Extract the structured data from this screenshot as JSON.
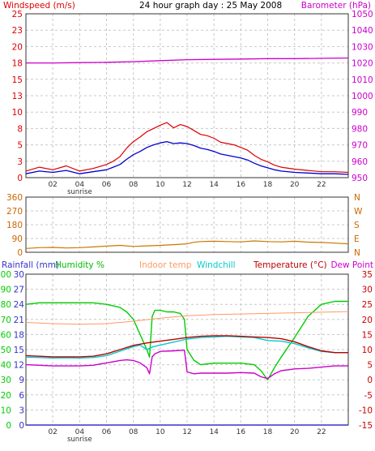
{
  "title": "24 hour graph day : 25 May 2008",
  "colors": {
    "windspeed": "#dd0000",
    "gust_avg": "#0000cc",
    "barometer": "#cc00cc",
    "direction": "#cc7700",
    "dir_axis": "#cc6600",
    "rainfall": "#3333cc",
    "humidity": "#00cc00",
    "indoor": "#ff9966",
    "windchill": "#00cccc",
    "temperature": "#bb0000",
    "dewpoint": "#cc00cc",
    "temp_axis": "#cc0000",
    "grid": "#c8c8c8",
    "frame": "#333333"
  },
  "x_axis": {
    "range_hours": [
      0,
      24
    ],
    "ticks": [
      "02",
      "04",
      "06",
      "08",
      "10",
      "12",
      "14",
      "16",
      "18",
      "20",
      "22"
    ],
    "tick_hours": [
      2,
      4,
      6,
      8,
      10,
      12,
      14,
      16,
      18,
      20,
      22
    ],
    "sunrise_label": "sunrise",
    "sunrise_hour": 4
  },
  "chart_data": [
    {
      "type": "line",
      "id": "wind",
      "left_label": "Windspeed (m/s)",
      "right_label": "Barometer (hPa)",
      "left_ticks": [
        "0",
        "3",
        "5",
        "8",
        "10",
        "13",
        "15",
        "18",
        "20",
        "23",
        "25"
      ],
      "left_range": [
        0,
        25
      ],
      "right_ticks": [
        "950",
        "960",
        "970",
        "980",
        "990",
        "1000",
        "1010",
        "1020",
        "1030",
        "1040",
        "1050"
      ],
      "right_range": [
        950,
        1050
      ],
      "series": [
        {
          "key": "windspeed",
          "x": [
            0,
            1,
            2,
            3,
            4,
            5,
            6,
            6.5,
            7,
            7.5,
            8,
            8.5,
            9,
            9.5,
            10,
            10.5,
            11,
            11.5,
            12,
            12.5,
            13,
            13.5,
            14,
            14.5,
            15,
            15.5,
            16,
            16.5,
            17,
            17.5,
            18,
            18.5,
            19,
            20,
            21,
            22,
            23,
            24
          ],
          "y": [
            1,
            1.6,
            1.2,
            1.8,
            1,
            1.4,
            2,
            2.5,
            3.2,
            4.5,
            5.5,
            6.2,
            7,
            7.5,
            8,
            8.4,
            7.6,
            8.1,
            7.8,
            7.2,
            6.6,
            6.4,
            6,
            5.4,
            5.2,
            5,
            4.6,
            4.2,
            3.4,
            2.8,
            2.4,
            1.9,
            1.6,
            1.3,
            1.1,
            0.9,
            0.9,
            0.8
          ]
        },
        {
          "key": "gust_avg",
          "x": [
            0,
            1,
            2,
            3,
            4,
            5,
            6,
            6.5,
            7,
            7.5,
            8,
            8.5,
            9,
            9.5,
            10,
            10.5,
            11,
            11.5,
            12,
            12.5,
            13,
            13.5,
            14,
            14.5,
            15,
            15.5,
            16,
            16.5,
            17,
            17.5,
            18,
            18.5,
            19,
            20,
            21,
            22,
            23,
            24
          ],
          "y": [
            0.6,
            1,
            0.8,
            1.1,
            0.6,
            0.9,
            1.2,
            1.6,
            2,
            2.8,
            3.5,
            4,
            4.6,
            5,
            5.3,
            5.5,
            5.2,
            5.3,
            5.2,
            4.9,
            4.5,
            4.3,
            4,
            3.6,
            3.4,
            3.2,
            3,
            2.7,
            2.2,
            1.8,
            1.5,
            1.2,
            1,
            0.8,
            0.7,
            0.6,
            0.6,
            0.5
          ]
        },
        {
          "key": "barometer",
          "axis": "right",
          "x": [
            0,
            2,
            4,
            6,
            8,
            10,
            12,
            14,
            16,
            18,
            20,
            22,
            24
          ],
          "y": [
            1020,
            1020,
            1020.2,
            1020.4,
            1020.8,
            1021.4,
            1022,
            1022.2,
            1022.4,
            1022.6,
            1022.6,
            1022.8,
            1023
          ]
        }
      ]
    },
    {
      "type": "line",
      "id": "direction",
      "left_ticks": [
        "0",
        "90",
        "180",
        "270",
        "360"
      ],
      "left_range": [
        0,
        360
      ],
      "right_ticks": [
        "N",
        "E",
        "S",
        "W",
        "N"
      ],
      "series": [
        {
          "key": "direction",
          "x": [
            0,
            1,
            2,
            3,
            4,
            5,
            6,
            7,
            8,
            9,
            10,
            11,
            12,
            12.5,
            13,
            14,
            15,
            16,
            17,
            18,
            19,
            20,
            21,
            22,
            23,
            24
          ],
          "y": [
            25,
            30,
            32,
            28,
            30,
            35,
            40,
            45,
            38,
            42,
            45,
            50,
            55,
            65,
            70,
            72,
            70,
            68,
            74,
            70,
            68,
            72,
            66,
            64,
            60,
            55
          ]
        }
      ]
    },
    {
      "type": "line",
      "id": "temperature",
      "labels": [
        "Rainfall (mm)",
        "Humidity %",
        "Indoor temp",
        "Windchill",
        "Temperature (°C)",
        "Dew Point"
      ],
      "humidity_ticks": [
        "0",
        "10",
        "20",
        "30",
        "40",
        "50",
        "60",
        "70",
        "80",
        "90",
        "100"
      ],
      "humidity_range": [
        0,
        100
      ],
      "rain_ticks": [
        "0",
        "3",
        "6",
        "9",
        "12",
        "15",
        "18",
        "21",
        "24",
        "27",
        "30"
      ],
      "rain_range": [
        0,
        30
      ],
      "temp_ticks": [
        "-15",
        "-10",
        "-5",
        "0",
        "5",
        "10",
        "15",
        "20",
        "25",
        "30",
        "35"
      ],
      "temp_range": [
        -15,
        35
      ],
      "series": [
        {
          "key": "humidity",
          "axis": "humidity",
          "x": [
            0,
            1,
            2,
            3,
            4,
            5,
            6,
            7,
            7.5,
            8,
            8.5,
            9,
            9.2,
            9.4,
            9.6,
            10,
            10.5,
            11,
            11.5,
            11.8,
            12,
            12.5,
            13,
            14,
            15,
            16,
            17,
            17.5,
            18,
            18.5,
            19,
            20,
            21,
            22,
            23,
            24
          ],
          "y": [
            80,
            81,
            81,
            81,
            81,
            81,
            80,
            78,
            75,
            70,
            60,
            50,
            45,
            72,
            76,
            76,
            75,
            75,
            74,
            70,
            50,
            43,
            40,
            41,
            41,
            41,
            40,
            36,
            30,
            38,
            45,
            58,
            72,
            80,
            82,
            82
          ]
        },
        {
          "key": "indoor",
          "axis": "temp",
          "x": [
            0,
            2,
            4,
            6,
            8,
            10,
            12,
            14,
            16,
            18,
            20,
            22,
            24
          ],
          "y": [
            19,
            18.6,
            18.4,
            18.6,
            19.4,
            20.4,
            21.2,
            21.6,
            21.8,
            22,
            22.2,
            22.4,
            22.6
          ]
        },
        {
          "key": "windchill",
          "axis": "temp",
          "x": [
            0,
            1,
            2,
            3,
            4,
            5,
            6,
            7,
            8,
            8.5,
            9,
            9.5,
            10,
            11,
            12,
            13,
            14,
            15,
            16,
            17,
            18,
            19,
            20,
            21,
            22,
            23,
            24
          ],
          "y": [
            7.5,
            7.4,
            7.2,
            7.3,
            7.2,
            7.4,
            8,
            9.5,
            11,
            11.5,
            10,
            11,
            11.5,
            12.5,
            13.5,
            14,
            14.2,
            14.4,
            14.2,
            14,
            13,
            12.8,
            12,
            10.6,
            9.4,
            9,
            9
          ]
        },
        {
          "key": "temperature",
          "axis": "temp",
          "x": [
            0,
            1,
            2,
            3,
            4,
            5,
            6,
            7,
            8,
            9,
            10,
            11,
            12,
            13,
            14,
            15,
            16,
            17,
            18,
            19,
            20,
            21,
            22,
            23,
            24
          ],
          "y": [
            8,
            7.8,
            7.6,
            7.6,
            7.6,
            7.8,
            8.6,
            10,
            11.4,
            12.2,
            12.8,
            13.4,
            14,
            14.4,
            14.6,
            14.6,
            14.4,
            14.2,
            14,
            13.6,
            12.6,
            11,
            9.6,
            9,
            9
          ]
        },
        {
          "key": "dewpoint",
          "axis": "temp",
          "x": [
            0,
            1,
            2,
            3,
            4,
            5,
            6,
            7,
            7.5,
            8,
            8.5,
            9,
            9.2,
            9.4,
            9.6,
            10,
            11,
            11.8,
            12,
            12.5,
            13,
            14,
            15,
            16,
            17,
            17.5,
            18,
            18.5,
            19,
            20,
            21,
            22,
            23,
            24
          ],
          "y": [
            5,
            4.8,
            4.6,
            4.6,
            4.6,
            4.8,
            5.6,
            6.4,
            6.6,
            6.4,
            5.6,
            4,
            2,
            7.6,
            8.6,
            9.4,
            9.6,
            9.8,
            2.6,
            2,
            2.2,
            2.2,
            2.2,
            2.4,
            2.2,
            1,
            0.4,
            2,
            3,
            3.6,
            3.8,
            4.2,
            4.6,
            4.6
          ]
        },
        {
          "key": "rainfall",
          "axis": "rain",
          "x": [
            0,
            24
          ],
          "y": [
            0,
            0
          ]
        }
      ]
    }
  ]
}
